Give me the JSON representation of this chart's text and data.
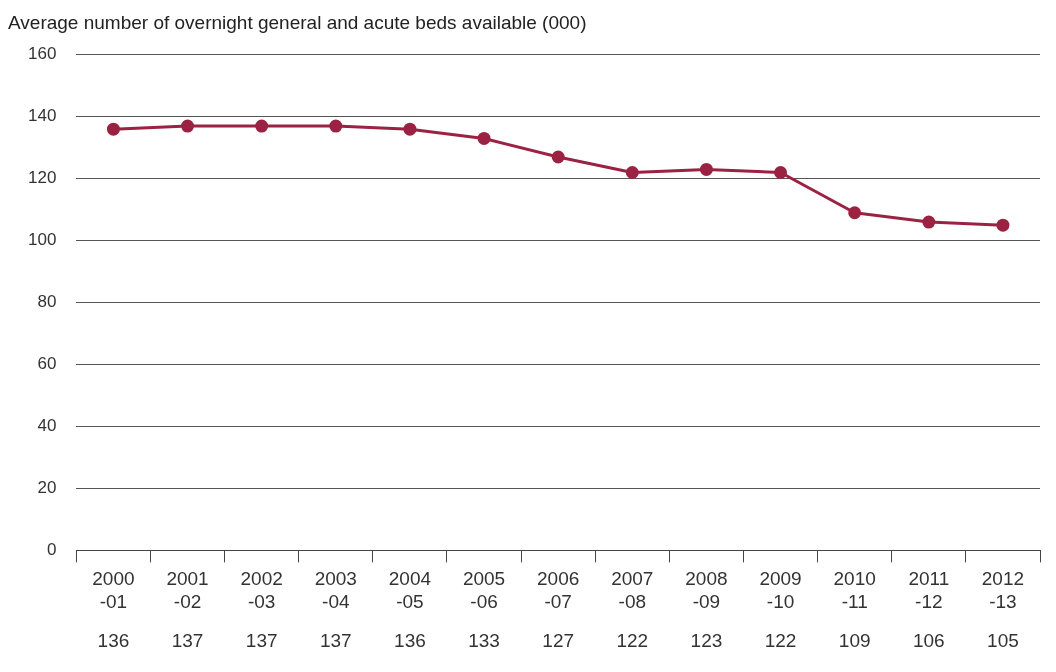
{
  "chart_data": {
    "type": "line",
    "title": "Average number of overnight general and acute beds available (000)",
    "categories": [
      "2000\n-01",
      "2001\n-02",
      "2002\n-03",
      "2003\n-04",
      "2004\n-05",
      "2005\n-06",
      "2006\n-07",
      "2007\n-08",
      "2008\n-09",
      "2009\n-10",
      "2010\n-11",
      "2011\n-12",
      "2012\n-13"
    ],
    "values": [
      136,
      137,
      137,
      137,
      136,
      133,
      127,
      122,
      123,
      122,
      109,
      106,
      105
    ],
    "color": "#9b2242",
    "ylim": [
      0,
      160
    ],
    "yticks": [
      0,
      20,
      40,
      60,
      80,
      100,
      120,
      140,
      160
    ],
    "grid": "y",
    "legend": false,
    "marker": "circle",
    "line_style": "solid",
    "data_labels": true
  }
}
